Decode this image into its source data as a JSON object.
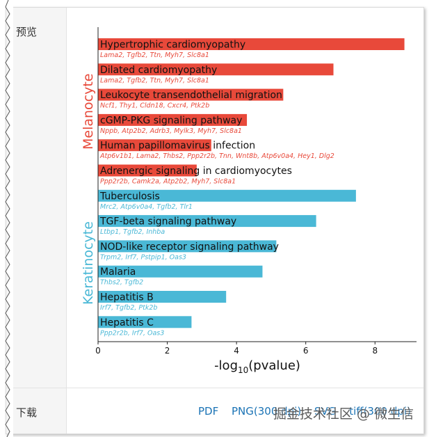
{
  "labels": {
    "preview": "预览",
    "download": "下载"
  },
  "downloads": [
    "PDF",
    "PNG(300 dpi)",
    "SVG",
    "tiff(300 dpi)"
  ],
  "watermark": "掘金技术社区 @ 微生信",
  "colors": {
    "melanocyte": "#e8493a",
    "keratinocyte": "#4ab8d6",
    "axis": "#222222"
  },
  "chart_data": {
    "type": "bar",
    "orientation": "horizontal",
    "xlim": [
      0,
      9.2
    ],
    "xticks": [
      "0",
      "2",
      "4",
      "6",
      "8"
    ],
    "xlabel_pre": "-log",
    "xlabel_sub": "10",
    "xlabel_post": "(pvalue)",
    "groups": [
      {
        "name": "Melanocyte",
        "color": "#e8493a",
        "pathways": [
          {
            "name": "Hypertrophic cardiomyopathy",
            "value": 8.85,
            "genes": "Lama2, Tgfb2, Ttn, Myh7, Slc8a1"
          },
          {
            "name": "Dilated cardiomyopathy",
            "value": 6.8,
            "genes": "Lama2, Tgfb2, Ttn, Myh7, Slc8a1"
          },
          {
            "name": "Leukocyte transendothelial migration",
            "value": 5.35,
            "genes": "Ncf1, Thy1, Cldn18, Cxcr4, Ptk2b"
          },
          {
            "name": "cGMP-PKG signaling pathway",
            "value": 4.3,
            "genes": "Nppb, Atp2b2, Adrb3, Mylk3, Myh7, Slc8a1"
          },
          {
            "name": "Human papillomavirus infection",
            "value": 3.27,
            "genes": "Atp6v1b1, Lama2, Thbs2, Ppp2r2b, Tnn, Wnt8b, Atp6v0a4, Hey1, Dlg2"
          },
          {
            "name": "Adrenergic signaling in cardiomyocytes",
            "value": 2.85,
            "genes": "Ppp2r2b, Camk2a, Atp2b2, Myh7, Slc8a1"
          }
        ]
      },
      {
        "name": "Keratinocyte",
        "color": "#4ab8d6",
        "pathways": [
          {
            "name": "Tuberculosis",
            "value": 7.45,
            "genes": "Mrc2, Atp6v0a4, Tgfb2, Tlr1"
          },
          {
            "name": "TGF-beta signaling pathway",
            "value": 6.3,
            "genes": "Ltbp1, Tgfb2, Inhba"
          },
          {
            "name": "NOD-like receptor signaling pathway",
            "value": 5.15,
            "genes": "Trpm2, Irf7, Pstpip1, Oas3"
          },
          {
            "name": "Malaria",
            "value": 4.75,
            "genes": "Thbs2, Tgfb2"
          },
          {
            "name": "Hepatitis B",
            "value": 3.7,
            "genes": "Irf7, Tgfb2, Ptk2b"
          },
          {
            "name": "Hepatitis C",
            "value": 2.7,
            "genes": "Ppp2r2b, Irf7, Oas3"
          }
        ]
      }
    ]
  }
}
